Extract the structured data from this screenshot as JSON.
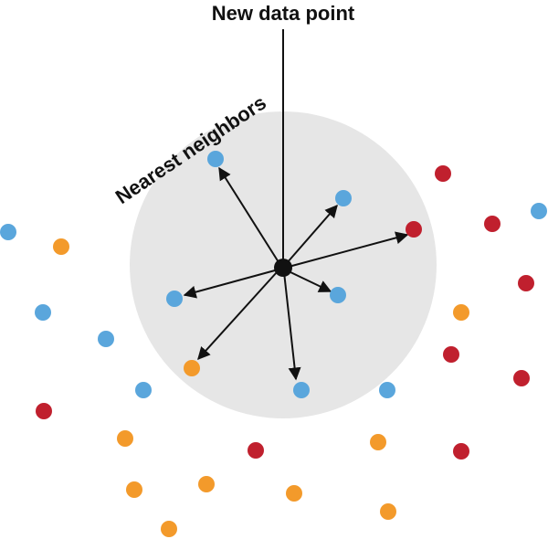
{
  "labels": {
    "new_point": "New data point",
    "neighbors": "Nearest neighbors"
  },
  "colors": {
    "blue": "#5aa6dc",
    "orange": "#f39a2b",
    "red": "#c0202e",
    "circle": "#e6e6e6",
    "ink": "#111111"
  },
  "legend_semantics": {
    "classes": [
      "blue",
      "orange",
      "red"
    ],
    "neighbor_count": 7
  }
}
